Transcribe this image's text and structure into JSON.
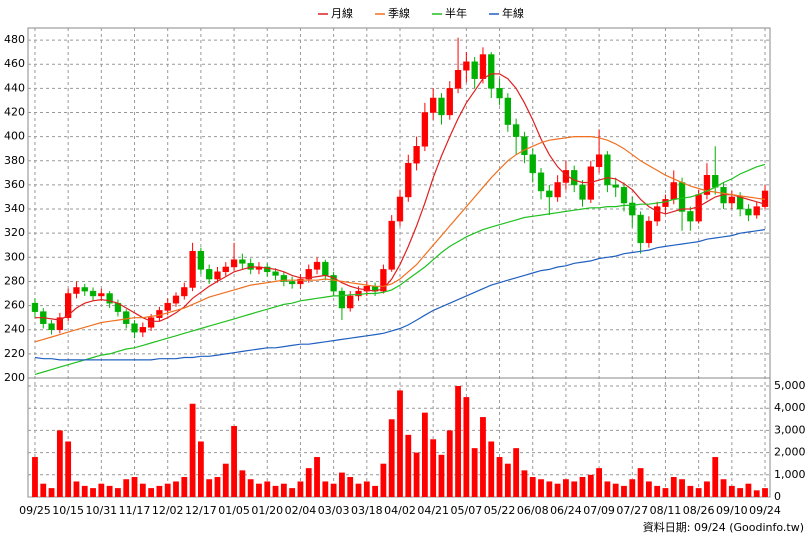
{
  "chart_data": {
    "type": "candlestick",
    "footer": "資料日期: 09/24 (Goodinfo.tw)",
    "xlim": [
      -0.84,
      88.6
    ],
    "xticks": [
      {
        "value": 0,
        "label": "09/25"
      },
      {
        "value": 4,
        "label": "10/15"
      },
      {
        "value": 8,
        "label": "10/31"
      },
      {
        "value": 12,
        "label": "11/17"
      },
      {
        "value": 16,
        "label": "12/02"
      },
      {
        "value": 20,
        "label": "12/17"
      },
      {
        "value": 24,
        "label": "01/05"
      },
      {
        "value": 28,
        "label": "01/20"
      },
      {
        "value": 32,
        "label": "02/04"
      },
      {
        "value": 36,
        "label": "03/03"
      },
      {
        "value": 40,
        "label": "03/18"
      },
      {
        "value": 44,
        "label": "04/02"
      },
      {
        "value": 48,
        "label": "04/21"
      },
      {
        "value": 52,
        "label": "05/07"
      },
      {
        "value": 56,
        "label": "05/22"
      },
      {
        "value": 60,
        "label": "06/08"
      },
      {
        "value": 64,
        "label": "06/24"
      },
      {
        "value": 68,
        "label": "07/09"
      },
      {
        "value": 72,
        "label": "07/27"
      },
      {
        "value": 76,
        "label": "08/11"
      },
      {
        "value": 80,
        "label": "08/26"
      },
      {
        "value": 84,
        "label": "09/10"
      },
      {
        "value": 88,
        "label": "09/24"
      }
    ],
    "ylim": [
      200,
      490
    ],
    "yticks": [
      200,
      220,
      240,
      260,
      280,
      300,
      320,
      340,
      360,
      380,
      400,
      420,
      440,
      460,
      480
    ],
    "y2lim": [
      0,
      5360
    ],
    "y2ticks": [
      0,
      {
        "value": 1000,
        "label": "1,000"
      },
      {
        "value": 2000,
        "label": "2,000"
      },
      {
        "value": 3000,
        "label": "3,000"
      },
      {
        "value": 4000,
        "label": "4,000"
      },
      {
        "value": 5000,
        "label": "5,000"
      }
    ],
    "grid": true,
    "up_color": "#ff0000",
    "down_color": "#00b000",
    "volume_color": "#ff0000",
    "open": [
      262,
      255,
      245,
      240,
      250,
      270,
      275,
      272,
      268,
      270,
      262,
      255,
      245,
      238,
      242,
      250,
      256,
      262,
      268,
      275,
      305,
      290,
      282,
      288,
      292,
      298,
      295,
      290,
      292,
      288,
      285,
      280,
      278,
      282,
      290,
      296,
      285,
      272,
      258,
      268,
      272,
      276,
      272,
      290,
      330,
      350,
      378,
      392,
      420,
      432,
      418,
      440,
      455,
      462,
      448,
      468,
      440,
      432,
      410,
      400,
      385,
      370,
      355,
      350,
      362,
      372,
      360,
      348,
      375,
      385,
      360,
      358,
      345,
      335,
      312,
      330,
      342,
      348,
      362,
      338,
      330,
      352,
      368,
      358,
      345,
      350,
      340,
      335,
      342
    ],
    "high": [
      266,
      258,
      248,
      254,
      274,
      280,
      278,
      275,
      274,
      272,
      265,
      257,
      248,
      246,
      253,
      259,
      266,
      271,
      279,
      312,
      308,
      294,
      292,
      296,
      312,
      303,
      299,
      296,
      295,
      291,
      288,
      284,
      286,
      294,
      300,
      298,
      288,
      275,
      272,
      276,
      280,
      279,
      294,
      335,
      356,
      385,
      400,
      428,
      440,
      436,
      446,
      482,
      470,
      466,
      474,
      470,
      448,
      436,
      415,
      404,
      390,
      374,
      360,
      368,
      380,
      376,
      364,
      380,
      406,
      388,
      366,
      362,
      350,
      338,
      334,
      346,
      352,
      372,
      366,
      342,
      356,
      378,
      392,
      362,
      355,
      354,
      344,
      346,
      360
    ],
    "low": [
      250,
      241,
      236,
      237,
      247,
      266,
      268,
      264,
      264,
      258,
      251,
      241,
      233,
      234,
      239,
      247,
      252,
      259,
      265,
      272,
      286,
      278,
      279,
      284,
      289,
      290,
      286,
      286,
      284,
      281,
      276,
      274,
      274,
      279,
      286,
      281,
      268,
      248,
      255,
      264,
      268,
      268,
      270,
      288,
      326,
      346,
      372,
      388,
      414,
      410,
      414,
      436,
      445,
      440,
      444,
      432,
      426,
      404,
      385,
      378,
      362,
      348,
      335,
      346,
      356,
      354,
      342,
      345,
      370,
      354,
      350,
      338,
      325,
      303,
      308,
      326,
      336,
      344,
      322,
      322,
      328,
      348,
      352,
      340,
      340,
      334,
      330,
      332,
      340
    ],
    "close": [
      255,
      245,
      240,
      250,
      270,
      275,
      272,
      268,
      270,
      262,
      255,
      245,
      238,
      242,
      250,
      256,
      262,
      268,
      275,
      305,
      290,
      282,
      288,
      292,
      298,
      295,
      290,
      292,
      288,
      285,
      280,
      278,
      282,
      290,
      296,
      285,
      272,
      258,
      268,
      272,
      276,
      272,
      290,
      330,
      350,
      378,
      392,
      420,
      432,
      418,
      440,
      455,
      462,
      448,
      468,
      440,
      432,
      410,
      400,
      385,
      370,
      355,
      350,
      362,
      372,
      360,
      348,
      375,
      385,
      360,
      358,
      345,
      335,
      312,
      330,
      342,
      348,
      362,
      338,
      330,
      352,
      368,
      358,
      345,
      350,
      340,
      335,
      342,
      355
    ],
    "volume": [
      1800,
      600,
      400,
      3000,
      2500,
      700,
      500,
      400,
      600,
      500,
      400,
      800,
      900,
      600,
      400,
      500,
      600,
      700,
      900,
      4200,
      2500,
      800,
      900,
      1500,
      3200,
      1200,
      800,
      600,
      700,
      500,
      600,
      400,
      700,
      1300,
      1800,
      700,
      600,
      1100,
      900,
      600,
      700,
      500,
      1500,
      3500,
      4800,
      2800,
      2000,
      3800,
      2600,
      1900,
      3000,
      5000,
      4500,
      2200,
      3600,
      2500,
      1800,
      1500,
      2200,
      1200,
      900,
      800,
      700,
      600,
      800,
      700,
      900,
      1000,
      1300,
      700,
      600,
      500,
      800,
      1300,
      700,
      500,
      400,
      900,
      800,
      500,
      400,
      700,
      1800,
      800,
      500,
      400,
      600,
      300,
      400
    ],
    "series": [
      {
        "name": "月線",
        "color": "#e02020",
        "values": [
          250,
          250,
          249,
          248,
          252,
          258,
          262,
          264,
          265,
          264,
          262,
          258,
          254,
          250,
          247,
          247,
          250,
          254,
          259,
          266,
          271,
          276,
          280,
          284,
          288,
          290,
          292,
          292,
          291,
          290,
          288,
          285,
          283,
          283,
          284,
          285,
          283,
          279,
          276,
          274,
          273,
          272,
          274,
          282,
          294,
          309,
          326,
          345,
          366,
          384,
          400,
          415,
          428,
          438,
          448,
          452,
          452,
          448,
          440,
          428,
          414,
          398,
          385,
          375,
          368,
          364,
          362,
          362,
          364,
          366,
          365,
          361,
          356,
          348,
          342,
          338,
          336,
          338,
          340,
          340,
          342,
          346,
          350,
          352,
          352,
          350,
          348,
          346,
          344
        ]
      },
      {
        "name": "季線",
        "color": "#f07020",
        "values": [
          230,
          232,
          234,
          236,
          238,
          240,
          242,
          244,
          246,
          247,
          248,
          249,
          250,
          250,
          251,
          252,
          254,
          256,
          258,
          261,
          264,
          267,
          269,
          271,
          273,
          275,
          277,
          278,
          279,
          280,
          281,
          281,
          281,
          281,
          281,
          282,
          281,
          280,
          279,
          278,
          277,
          276,
          276,
          278,
          282,
          288,
          294,
          302,
          310,
          318,
          326,
          334,
          342,
          350,
          358,
          366,
          373,
          380,
          385,
          389,
          392,
          395,
          397,
          398,
          399,
          400,
          400,
          400,
          399,
          397,
          394,
          390,
          385,
          380,
          376,
          372,
          368,
          365,
          362,
          359,
          357,
          355,
          354,
          353,
          352,
          351,
          350,
          349,
          348
        ]
      },
      {
        "name": "半年",
        "color": "#20c020",
        "values": [
          203,
          205,
          207,
          209,
          211,
          213,
          215,
          217,
          219,
          220,
          222,
          224,
          225,
          227,
          229,
          231,
          233,
          235,
          237,
          239,
          241,
          243,
          245,
          247,
          249,
          251,
          253,
          255,
          257,
          259,
          261,
          262,
          264,
          265,
          266,
          267,
          268,
          268,
          269,
          269,
          270,
          270,
          271,
          273,
          277,
          282,
          287,
          292,
          298,
          304,
          309,
          313,
          317,
          320,
          323,
          325,
          327,
          329,
          331,
          333,
          334,
          335,
          336,
          337,
          338,
          339,
          340,
          341,
          341,
          342,
          342,
          343,
          343,
          344,
          344,
          345,
          346,
          348,
          349,
          350,
          352,
          355,
          358,
          362,
          365,
          369,
          372,
          375,
          377
        ]
      },
      {
        "name": "年線",
        "color": "#2060c0",
        "values": [
          217,
          216,
          216,
          215,
          215,
          215,
          215,
          215,
          215,
          215,
          215,
          215,
          215,
          215,
          215,
          216,
          216,
          216,
          217,
          217,
          218,
          218,
          219,
          220,
          221,
          222,
          223,
          224,
          225,
          225,
          226,
          227,
          228,
          228,
          229,
          230,
          231,
          232,
          233,
          234,
          235,
          236,
          237,
          239,
          241,
          244,
          248,
          252,
          256,
          259,
          262,
          265,
          268,
          271,
          274,
          277,
          279,
          281,
          283,
          285,
          287,
          289,
          290,
          292,
          293,
          295,
          296,
          297,
          299,
          300,
          301,
          303,
          304,
          305,
          306,
          308,
          309,
          310,
          311,
          312,
          313,
          315,
          316,
          317,
          318,
          320,
          321,
          322,
          323
        ]
      }
    ]
  }
}
